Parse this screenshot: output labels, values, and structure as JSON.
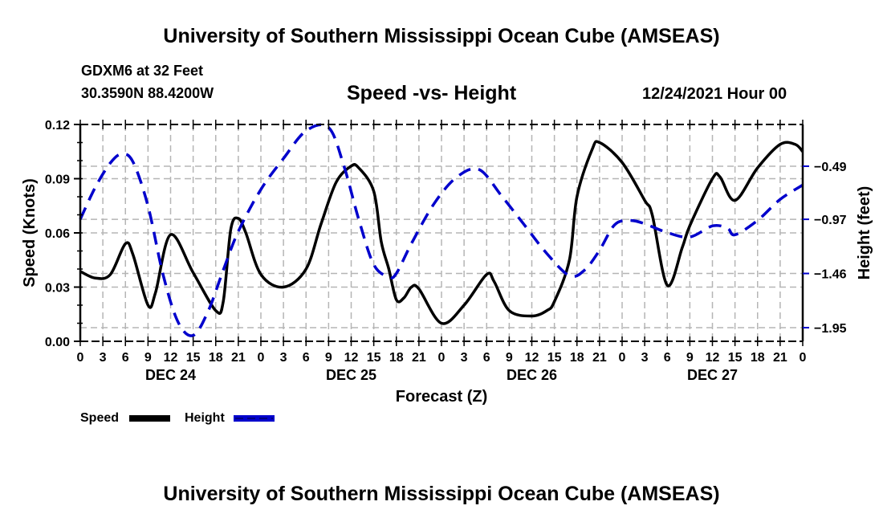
{
  "header": {
    "title": "University of Southern Mississippi Ocean Cube (AMSEAS)",
    "station": "GDXM6 at 32 Feet",
    "coords": "30.3590N  88.4200W",
    "subtitle": "Speed -vs- Height",
    "date": "12/24/2021 Hour 00"
  },
  "footer": {
    "title": "University of Southern Mississippi Ocean Cube (AMSEAS)"
  },
  "legend": [
    {
      "label": "Speed",
      "color": "#000000",
      "style": "solid"
    },
    {
      "label": "Height",
      "color": "#0000cc",
      "style": "dashed"
    }
  ],
  "chart_data": {
    "type": "line",
    "title": "Speed -vs- Height",
    "xlabel": "Forecast (Z)",
    "ylabel": "Speed (Knots)",
    "y2label": "Height (feet)",
    "xlim": [
      0,
      96
    ],
    "ylim": [
      0,
      0.12
    ],
    "y2lim": [
      -2.2,
      -0.09
    ],
    "grid": true,
    "legend_position": "bottom-left",
    "x_tick_labels": [
      "0",
      "3",
      "6",
      "9",
      "12",
      "15",
      "18",
      "21",
      "0",
      "3",
      "6",
      "9",
      "12",
      "15",
      "18",
      "21",
      "0",
      "3",
      "6",
      "9",
      "12",
      "15",
      "18",
      "21",
      "0",
      "3",
      "6",
      "9",
      "12",
      "15",
      "18",
      "21",
      "0"
    ],
    "y_ticks": [
      "0.00",
      "0.03",
      "0.06",
      "0.09",
      "0.12"
    ],
    "y2_ticks": [
      "-0.49",
      "-0.97",
      "-1.46",
      "-1.95"
    ],
    "y2_tick_values": [
      -0.49,
      -0.97,
      -1.46,
      -1.95
    ],
    "day_labels": [
      {
        "label": "DEC 24",
        "hour": 12
      },
      {
        "label": "DEC 25",
        "hour": 36
      },
      {
        "label": "DEC 26",
        "hour": 60
      },
      {
        "label": "DEC 27",
        "hour": 84
      }
    ],
    "series": [
      {
        "name": "Speed",
        "axis": "left",
        "x": [
          0,
          2,
          4,
          6,
          7,
          9,
          10,
          12,
          15,
          18,
          19,
          20,
          21,
          22,
          24,
          27,
          30,
          32,
          34,
          36,
          37,
          39,
          40,
          41,
          42,
          43,
          44,
          45,
          48,
          51,
          54,
          55,
          57,
          60,
          62,
          63,
          65,
          66,
          68,
          69,
          72,
          75,
          76,
          78,
          80,
          81,
          84,
          85,
          87,
          90,
          93,
          95,
          96
        ],
        "values": [
          0.0387,
          0.035,
          0.037,
          0.054,
          0.048,
          0.02,
          0.027,
          0.059,
          0.038,
          0.017,
          0.022,
          0.062,
          0.068,
          0.06,
          0.037,
          0.03,
          0.04,
          0.065,
          0.088,
          0.097,
          0.096,
          0.083,
          0.055,
          0.04,
          0.023,
          0.024,
          0.03,
          0.029,
          0.01,
          0.02,
          0.037,
          0.033,
          0.017,
          0.014,
          0.017,
          0.022,
          0.045,
          0.08,
          0.106,
          0.11,
          0.099,
          0.078,
          0.07,
          0.031,
          0.052,
          0.064,
          0.09,
          0.091,
          0.078,
          0.096,
          0.109,
          0.109,
          0.105
        ]
      },
      {
        "name": "Height",
        "axis": "right",
        "x": [
          0,
          2,
          4,
          5.5,
          7,
          9,
          11,
          13,
          15,
          17,
          19,
          21,
          24,
          27,
          30,
          33,
          35,
          37,
          39,
          41,
          42,
          44,
          47,
          50,
          53,
          56,
          59,
          62,
          65,
          67,
          69,
          71,
          73,
          75,
          78,
          81,
          84,
          86,
          87,
          90,
          93,
          96
        ],
        "values": [
          -0.97,
          -0.68,
          -0.46,
          -0.38,
          -0.45,
          -0.85,
          -1.47,
          -1.9,
          -2.02,
          -1.8,
          -1.43,
          -1.08,
          -0.7,
          -0.42,
          -0.17,
          -0.14,
          -0.48,
          -0.97,
          -1.38,
          -1.49,
          -1.46,
          -1.19,
          -0.83,
          -0.59,
          -0.52,
          -0.76,
          -1.02,
          -1.28,
          -1.48,
          -1.43,
          -1.25,
          -1.02,
          -0.98,
          -1.01,
          -1.09,
          -1.13,
          -1.03,
          -1.05,
          -1.11,
          -0.98,
          -0.79,
          -0.66
        ]
      }
    ]
  }
}
